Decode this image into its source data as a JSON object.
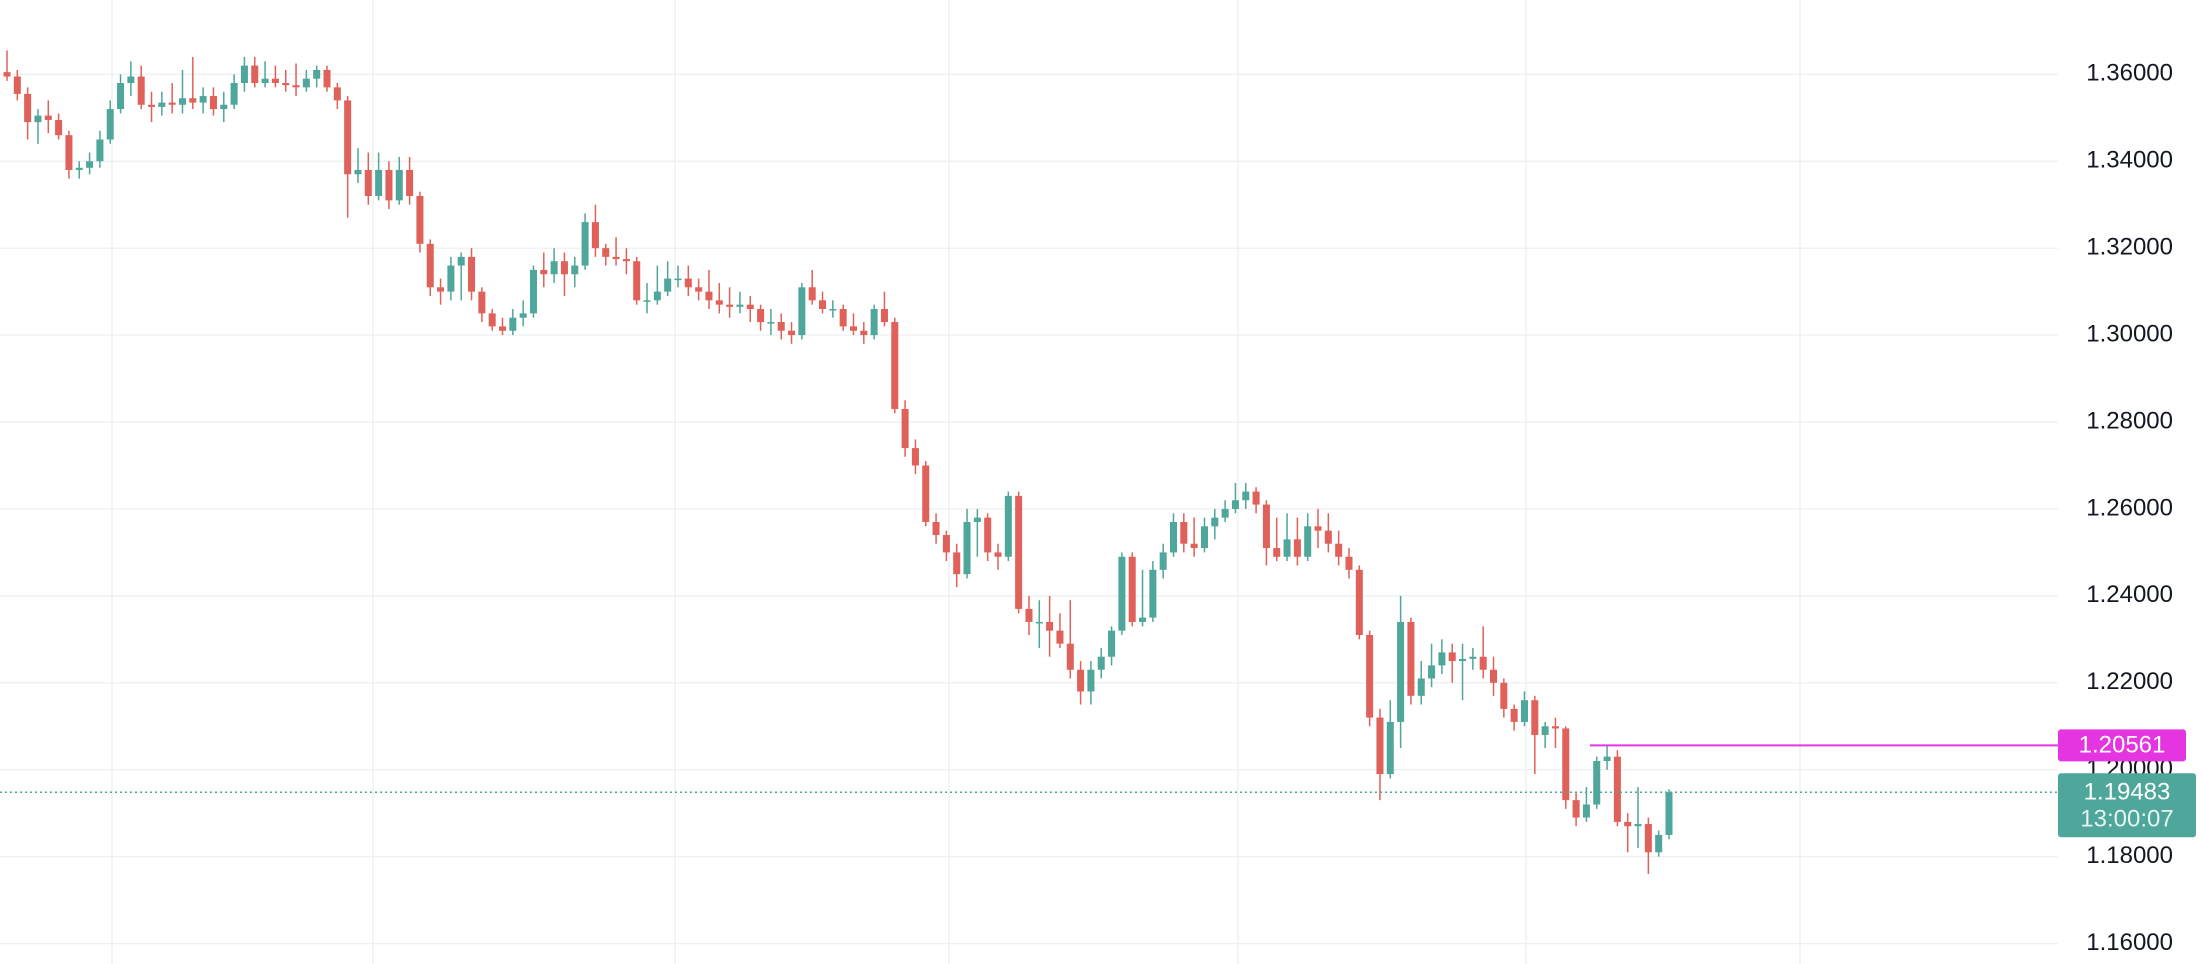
{
  "chart_data": {
    "type": "candlestick",
    "series": [
      {
        "up_color": "#4fa69a",
        "down_color": "#e0605a",
        "ohlc": [
          [
            1.3605,
            1.3655,
            1.3585,
            1.3595
          ],
          [
            1.3595,
            1.361,
            1.354,
            1.3555
          ],
          [
            1.3555,
            1.357,
            1.345,
            1.349
          ],
          [
            1.349,
            1.352,
            1.344,
            1.3505
          ],
          [
            1.3505,
            1.354,
            1.3465,
            1.3495
          ],
          [
            1.3495,
            1.351,
            1.345,
            1.346
          ],
          [
            1.346,
            1.347,
            1.336,
            1.338
          ],
          [
            1.338,
            1.34,
            1.336,
            1.3385
          ],
          [
            1.3385,
            1.342,
            1.337,
            1.34
          ],
          [
            1.34,
            1.347,
            1.3385,
            1.345
          ],
          [
            1.345,
            1.354,
            1.344,
            1.352
          ],
          [
            1.352,
            1.36,
            1.351,
            1.358
          ],
          [
            1.358,
            1.363,
            1.355,
            1.3595
          ],
          [
            1.3595,
            1.362,
            1.352,
            1.353
          ],
          [
            1.353,
            1.356,
            1.349,
            1.3525
          ],
          [
            1.3525,
            1.356,
            1.3505,
            1.3535
          ],
          [
            1.3535,
            1.358,
            1.351,
            1.353
          ],
          [
            1.353,
            1.361,
            1.351,
            1.3545
          ],
          [
            1.3545,
            1.364,
            1.352,
            1.3535
          ],
          [
            1.3535,
            1.357,
            1.351,
            1.355
          ],
          [
            1.355,
            1.357,
            1.3505,
            1.352
          ],
          [
            1.352,
            1.356,
            1.349,
            1.353
          ],
          [
            1.353,
            1.36,
            1.352,
            1.358
          ],
          [
            1.358,
            1.364,
            1.356,
            1.362
          ],
          [
            1.362,
            1.364,
            1.357,
            1.358
          ],
          [
            1.358,
            1.363,
            1.357,
            1.359
          ],
          [
            1.359,
            1.362,
            1.357,
            1.358
          ],
          [
            1.358,
            1.361,
            1.356,
            1.3575
          ],
          [
            1.3575,
            1.3625,
            1.355,
            1.357
          ],
          [
            1.357,
            1.361,
            1.356,
            1.359
          ],
          [
            1.359,
            1.362,
            1.357,
            1.361
          ],
          [
            1.361,
            1.362,
            1.356,
            1.357
          ],
          [
            1.357,
            1.358,
            1.352,
            1.354
          ],
          [
            1.354,
            1.355,
            1.327,
            1.337
          ],
          [
            1.337,
            1.343,
            1.335,
            1.338
          ],
          [
            1.338,
            1.342,
            1.33,
            1.332
          ],
          [
            1.332,
            1.342,
            1.331,
            1.338
          ],
          [
            1.338,
            1.34,
            1.329,
            1.331
          ],
          [
            1.331,
            1.341,
            1.33,
            1.338
          ],
          [
            1.338,
            1.341,
            1.33,
            1.332
          ],
          [
            1.332,
            1.333,
            1.319,
            1.321
          ],
          [
            1.321,
            1.322,
            1.309,
            1.311
          ],
          [
            1.311,
            1.313,
            1.307,
            1.31
          ],
          [
            1.31,
            1.318,
            1.308,
            1.316
          ],
          [
            1.316,
            1.319,
            1.308,
            1.318
          ],
          [
            1.318,
            1.32,
            1.308,
            1.31
          ],
          [
            1.31,
            1.311,
            1.303,
            1.305
          ],
          [
            1.305,
            1.306,
            1.301,
            1.302
          ],
          [
            1.302,
            1.304,
            1.3,
            1.301
          ],
          [
            1.301,
            1.306,
            1.3,
            1.304
          ],
          [
            1.304,
            1.308,
            1.302,
            1.305
          ],
          [
            1.305,
            1.316,
            1.304,
            1.315
          ],
          [
            1.315,
            1.319,
            1.311,
            1.314
          ],
          [
            1.314,
            1.32,
            1.312,
            1.317
          ],
          [
            1.317,
            1.319,
            1.309,
            1.314
          ],
          [
            1.314,
            1.318,
            1.311,
            1.316
          ],
          [
            1.316,
            1.328,
            1.315,
            1.326
          ],
          [
            1.326,
            1.33,
            1.318,
            1.32
          ],
          [
            1.32,
            1.321,
            1.316,
            1.318
          ],
          [
            1.318,
            1.3225,
            1.316,
            1.3175
          ],
          [
            1.3175,
            1.32,
            1.314,
            1.317
          ],
          [
            1.317,
            1.318,
            1.307,
            1.308
          ],
          [
            1.308,
            1.312,
            1.305,
            1.308
          ],
          [
            1.308,
            1.316,
            1.307,
            1.31
          ],
          [
            1.31,
            1.317,
            1.309,
            1.313
          ],
          [
            1.313,
            1.316,
            1.311,
            1.313
          ],
          [
            1.313,
            1.316,
            1.309,
            1.311
          ],
          [
            1.311,
            1.313,
            1.308,
            1.31
          ],
          [
            1.31,
            1.315,
            1.306,
            1.308
          ],
          [
            1.308,
            1.312,
            1.305,
            1.307
          ],
          [
            1.307,
            1.311,
            1.304,
            1.3065
          ],
          [
            1.3065,
            1.31,
            1.305,
            1.307
          ],
          [
            1.307,
            1.309,
            1.303,
            1.306
          ],
          [
            1.306,
            1.307,
            1.301,
            1.303
          ],
          [
            1.303,
            1.306,
            1.3,
            1.303
          ],
          [
            1.303,
            1.305,
            1.299,
            1.301
          ],
          [
            1.301,
            1.303,
            1.298,
            1.3
          ],
          [
            1.3,
            1.312,
            1.299,
            1.311
          ],
          [
            1.311,
            1.315,
            1.307,
            1.308
          ],
          [
            1.308,
            1.31,
            1.305,
            1.306
          ],
          [
            1.306,
            1.308,
            1.304,
            1.306
          ],
          [
            1.306,
            1.307,
            1.301,
            1.302
          ],
          [
            1.302,
            1.305,
            1.3,
            1.301
          ],
          [
            1.301,
            1.303,
            1.298,
            1.3
          ],
          [
            1.3,
            1.307,
            1.299,
            1.306
          ],
          [
            1.306,
            1.31,
            1.302,
            1.303
          ],
          [
            1.303,
            1.304,
            1.282,
            1.283
          ],
          [
            1.283,
            1.285,
            1.272,
            1.274
          ],
          [
            1.274,
            1.276,
            1.268,
            1.27
          ],
          [
            1.27,
            1.271,
            1.256,
            1.257
          ],
          [
            1.257,
            1.259,
            1.252,
            1.254
          ],
          [
            1.254,
            1.255,
            1.248,
            1.25
          ],
          [
            1.25,
            1.252,
            1.242,
            1.245
          ],
          [
            1.245,
            1.26,
            1.244,
            1.257
          ],
          [
            1.257,
            1.26,
            1.249,
            1.258
          ],
          [
            1.258,
            1.259,
            1.248,
            1.25
          ],
          [
            1.25,
            1.252,
            1.246,
            1.249
          ],
          [
            1.249,
            1.264,
            1.248,
            1.263
          ],
          [
            1.263,
            1.264,
            1.236,
            1.237
          ],
          [
            1.237,
            1.24,
            1.231,
            1.234
          ],
          [
            1.234,
            1.239,
            1.228,
            1.234
          ],
          [
            1.234,
            1.24,
            1.226,
            1.232
          ],
          [
            1.232,
            1.236,
            1.228,
            1.229
          ],
          [
            1.229,
            1.239,
            1.221,
            1.223
          ],
          [
            1.223,
            1.225,
            1.215,
            1.218
          ],
          [
            1.218,
            1.225,
            1.215,
            1.223
          ],
          [
            1.223,
            1.228,
            1.221,
            1.226
          ],
          [
            1.226,
            1.233,
            1.224,
            1.232
          ],
          [
            1.232,
            1.25,
            1.231,
            1.249
          ],
          [
            1.249,
            1.25,
            1.233,
            1.234
          ],
          [
            1.234,
            1.246,
            1.233,
            1.235
          ],
          [
            1.235,
            1.248,
            1.234,
            1.246
          ],
          [
            1.246,
            1.252,
            1.244,
            1.25
          ],
          [
            1.25,
            1.259,
            1.249,
            1.257
          ],
          [
            1.257,
            1.259,
            1.25,
            1.252
          ],
          [
            1.252,
            1.258,
            1.249,
            1.251
          ],
          [
            1.251,
            1.258,
            1.25,
            1.256
          ],
          [
            1.256,
            1.26,
            1.253,
            1.258
          ],
          [
            1.258,
            1.262,
            1.257,
            1.26
          ],
          [
            1.26,
            1.266,
            1.259,
            1.262
          ],
          [
            1.262,
            1.266,
            1.26,
            1.264
          ],
          [
            1.264,
            1.265,
            1.259,
            1.261
          ],
          [
            1.261,
            1.262,
            1.247,
            1.251
          ],
          [
            1.251,
            1.258,
            1.248,
            1.249
          ],
          [
            1.249,
            1.259,
            1.248,
            1.253
          ],
          [
            1.253,
            1.258,
            1.247,
            1.249
          ],
          [
            1.249,
            1.259,
            1.248,
            1.256
          ],
          [
            1.256,
            1.26,
            1.251,
            1.255
          ],
          [
            1.255,
            1.259,
            1.25,
            1.252
          ],
          [
            1.252,
            1.255,
            1.247,
            1.249
          ],
          [
            1.249,
            1.251,
            1.244,
            1.246
          ],
          [
            1.246,
            1.247,
            1.23,
            1.231
          ],
          [
            1.231,
            1.232,
            1.21,
            1.212
          ],
          [
            1.212,
            1.214,
            1.193,
            1.199
          ],
          [
            1.199,
            1.216,
            1.198,
            1.211
          ],
          [
            1.211,
            1.24,
            1.205,
            1.234
          ],
          [
            1.234,
            1.235,
            1.215,
            1.217
          ],
          [
            1.217,
            1.225,
            1.215,
            1.221
          ],
          [
            1.221,
            1.229,
            1.219,
            1.224
          ],
          [
            1.224,
            1.23,
            1.222,
            1.227
          ],
          [
            1.227,
            1.229,
            1.22,
            1.225
          ],
          [
            1.225,
            1.229,
            1.216,
            1.2255
          ],
          [
            1.2255,
            1.228,
            1.223,
            1.226
          ],
          [
            1.226,
            1.233,
            1.221,
            1.223
          ],
          [
            1.223,
            1.226,
            1.217,
            1.22
          ],
          [
            1.22,
            1.221,
            1.212,
            1.214
          ],
          [
            1.214,
            1.215,
            1.209,
            1.211
          ],
          [
            1.211,
            1.218,
            1.21,
            1.216
          ],
          [
            1.216,
            1.217,
            1.199,
            1.208
          ],
          [
            1.208,
            1.211,
            1.205,
            1.21
          ],
          [
            1.21,
            1.212,
            1.205,
            1.2095
          ],
          [
            1.2095,
            1.21,
            1.191,
            1.193
          ],
          [
            1.193,
            1.195,
            1.187,
            1.189
          ],
          [
            1.189,
            1.196,
            1.188,
            1.192
          ],
          [
            1.192,
            1.203,
            1.191,
            1.202
          ],
          [
            1.202,
            1.20561,
            1.2,
            1.203
          ],
          [
            1.203,
            1.2045,
            1.187,
            1.188
          ],
          [
            1.188,
            1.19,
            1.181,
            1.187
          ],
          [
            1.187,
            1.196,
            1.182,
            1.1875
          ],
          [
            1.1875,
            1.189,
            1.176,
            1.181
          ],
          [
            1.181,
            1.186,
            1.18,
            1.185
          ],
          [
            1.185,
            1.1955,
            1.184,
            1.19483
          ]
        ]
      }
    ],
    "ylim": [
      1.1553,
      1.3771
    ],
    "yticks": [
      {
        "value": 1.16,
        "label": "1.16000"
      },
      {
        "value": 1.18,
        "label": "1.18000"
      },
      {
        "value": 1.2,
        "label": "1.20000"
      },
      {
        "value": 1.22,
        "label": "1.22000"
      },
      {
        "value": 1.24,
        "label": "1.24000"
      },
      {
        "value": 1.26,
        "label": "1.26000"
      },
      {
        "value": 1.28,
        "label": "1.28000"
      },
      {
        "value": 1.3,
        "label": "1.30000"
      },
      {
        "value": 1.32,
        "label": "1.32000"
      },
      {
        "value": 1.34,
        "label": "1.34000"
      },
      {
        "value": 1.36,
        "label": "1.36000"
      }
    ],
    "grid": true,
    "price_lines": [
      {
        "value": 1.20561,
        "color": "#e535e0"
      },
      {
        "value": 1.19483,
        "color": "#4fa69a",
        "countdown": "13:00:07"
      }
    ]
  }
}
